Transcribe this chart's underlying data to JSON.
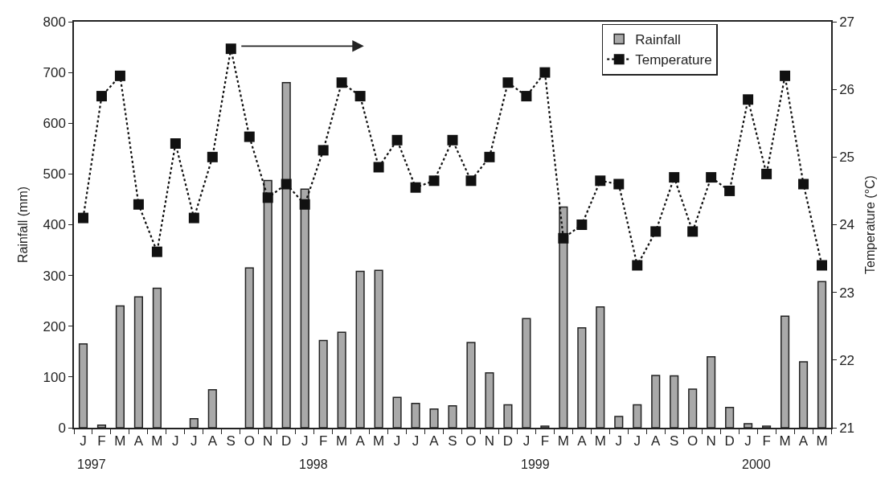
{
  "chart_data": {
    "type": "bar",
    "ylabel": "Rainfall (mm)",
    "y2label": "Temperature (°C)",
    "categories": [
      "J",
      "F",
      "M",
      "A",
      "M",
      "J",
      "J",
      "A",
      "S",
      "O",
      "N",
      "D",
      "J",
      "F",
      "M",
      "A",
      "M",
      "J",
      "J",
      "A",
      "S",
      "O",
      "N",
      "D",
      "J",
      "F",
      "M",
      "A",
      "M",
      "J",
      "J",
      "A",
      "S",
      "O",
      "N",
      "D",
      "J",
      "F",
      "M",
      "A",
      "M"
    ],
    "series": [
      {
        "name": "Rainfall",
        "color": "#a9a9a9",
        "values": [
          165,
          5,
          240,
          258,
          275,
          0,
          18,
          75,
          0,
          315,
          487,
          680,
          470,
          172,
          188,
          308,
          310,
          60,
          48,
          37,
          43,
          168,
          108,
          45,
          215,
          3,
          435,
          197,
          238,
          22,
          45,
          103,
          102,
          76,
          140,
          40,
          8,
          3,
          220,
          130,
          288
        ]
      },
      {
        "name": "Temperature",
        "type": "line",
        "axis": "y2",
        "color": "#111111",
        "marker": "square",
        "line_style": "dotted",
        "values": [
          24.1,
          25.9,
          26.2,
          24.3,
          23.6,
          25.2,
          24.1,
          25.0,
          26.6,
          25.3,
          24.4,
          24.6,
          24.3,
          25.1,
          26.1,
          25.9,
          24.85,
          25.25,
          24.55,
          24.65,
          25.25,
          24.65,
          25.0,
          26.1,
          25.9,
          26.25,
          23.8,
          24.0,
          24.65,
          24.6,
          23.4,
          23.9,
          24.7,
          23.9,
          24.7,
          24.5,
          25.85,
          24.75,
          26.2,
          24.6,
          23.4
        ]
      }
    ],
    "ylim": [
      0,
      800
    ],
    "yticks": [
      0,
      100,
      200,
      300,
      400,
      500,
      600,
      700,
      800
    ],
    "y2lim": [
      21,
      27
    ],
    "y2ticks": [
      21,
      22,
      23,
      24,
      25,
      26,
      27
    ],
    "legend": "top right",
    "annotations": [
      "1997",
      "1998",
      "1999",
      "2000"
    ]
  }
}
